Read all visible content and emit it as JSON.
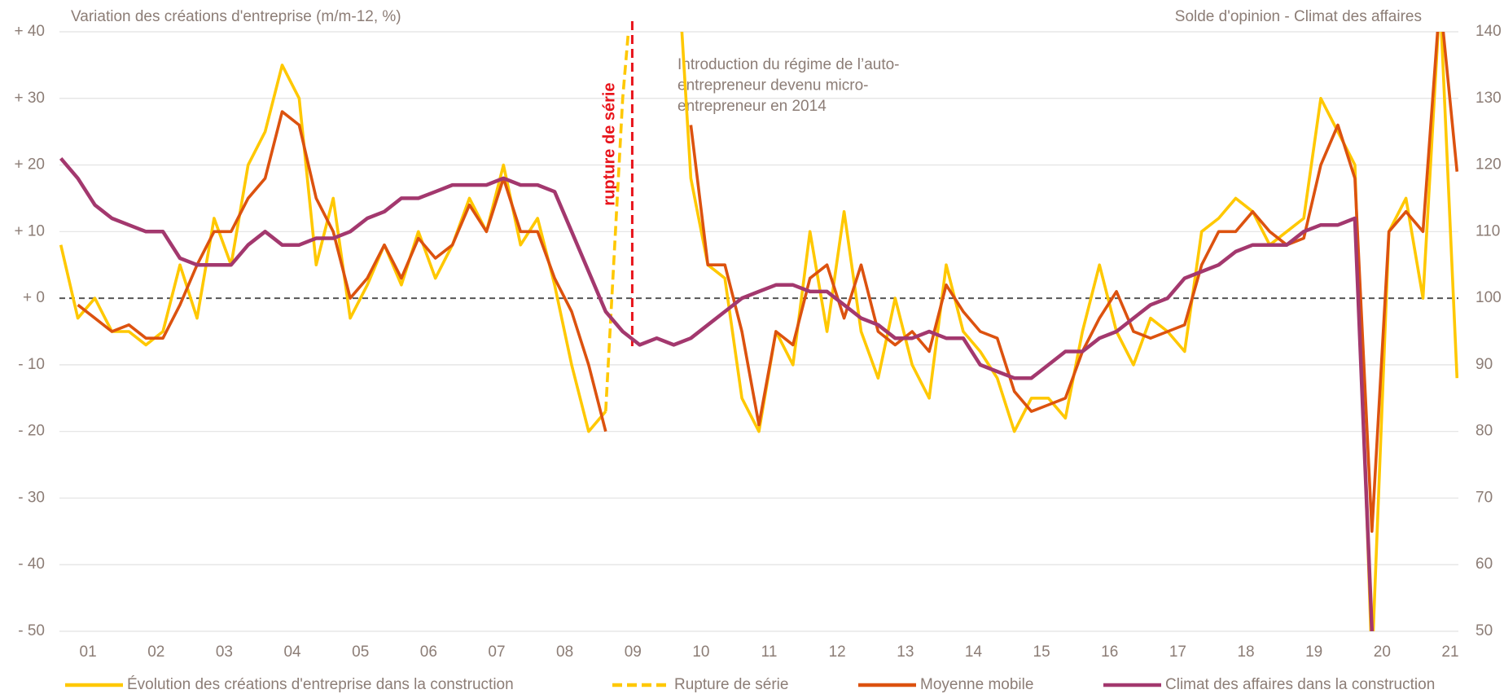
{
  "chart_data": {
    "type": "line",
    "y_title": "Variation des créations d'entreprise (m/m-12, %)",
    "y2_title": "Solde d'opinion - Climat des affaires",
    "annotation": [
      "Introduction du régime de l’auto-",
      "entrepreneur devenu micro-",
      "entrepreneur en 2014"
    ],
    "vline": {
      "x": 9.49,
      "label": "rupture de série",
      "color": "#e8141b"
    },
    "legend": "bottom",
    "grid": true,
    "xlim": [
      1.08,
      21.62
    ],
    "xticks": [
      {
        "value": 1.5,
        "label": "01"
      },
      {
        "value": 2.5,
        "label": "02"
      },
      {
        "value": 3.5,
        "label": "03"
      },
      {
        "value": 4.5,
        "label": "04"
      },
      {
        "value": 5.5,
        "label": "05"
      },
      {
        "value": 6.5,
        "label": "06"
      },
      {
        "value": 7.5,
        "label": "07"
      },
      {
        "value": 8.5,
        "label": "08"
      },
      {
        "value": 9.5,
        "label": "09"
      },
      {
        "value": 10.5,
        "label": "10"
      },
      {
        "value": 11.5,
        "label": "11"
      },
      {
        "value": 12.5,
        "label": "12"
      },
      {
        "value": 13.5,
        "label": "13"
      },
      {
        "value": 14.5,
        "label": "14"
      },
      {
        "value": 15.5,
        "label": "15"
      },
      {
        "value": 16.5,
        "label": "16"
      },
      {
        "value": 17.5,
        "label": "17"
      },
      {
        "value": 18.5,
        "label": "18"
      },
      {
        "value": 19.5,
        "label": "19"
      },
      {
        "value": 20.5,
        "label": "20"
      },
      {
        "value": 21.5,
        "label": "21"
      }
    ],
    "ylim": [
      -50,
      40
    ],
    "yticks": [
      {
        "value": 40,
        "label": "+ 40"
      },
      {
        "value": 30,
        "label": "+ 30"
      },
      {
        "value": 20,
        "label": "+ 20"
      },
      {
        "value": 10,
        "label": "+ 10"
      },
      {
        "value": 0,
        "label": "+ 0"
      },
      {
        "value": -10,
        "label": "- 10"
      },
      {
        "value": -20,
        "label": "- 20"
      },
      {
        "value": -30,
        "label": "- 30"
      },
      {
        "value": -40,
        "label": "- 40"
      },
      {
        "value": -50,
        "label": "- 50"
      }
    ],
    "y2lim": [
      50,
      140
    ],
    "y2ticks": [
      140,
      130,
      120,
      110,
      100,
      90,
      80,
      70,
      60,
      50
    ],
    "x": [
      1.1,
      1.35,
      1.6,
      1.85,
      2.1,
      2.35,
      2.6,
      2.85,
      3.1,
      3.35,
      3.6,
      3.85,
      4.1,
      4.35,
      4.6,
      4.85,
      5.1,
      5.35,
      5.6,
      5.85,
      6.1,
      6.35,
      6.6,
      6.85,
      7.1,
      7.35,
      7.6,
      7.85,
      8.1,
      8.35,
      8.6,
      8.85,
      9.1,
      9.35,
      9.6,
      9.85,
      10.1,
      10.35,
      10.6,
      10.85,
      11.1,
      11.35,
      11.6,
      11.85,
      12.1,
      12.35,
      12.6,
      12.85,
      13.1,
      13.35,
      13.6,
      13.85,
      14.1,
      14.35,
      14.6,
      14.85,
      15.1,
      15.35,
      15.6,
      15.85,
      16.1,
      16.35,
      16.6,
      16.85,
      17.1,
      17.35,
      17.6,
      17.85,
      18.1,
      18.35,
      18.6,
      18.85,
      19.1,
      19.35,
      19.6,
      19.85,
      20.1,
      20.35,
      20.6,
      20.85,
      21.1,
      21.35,
      21.6
    ],
    "series": [
      {
        "name": "Évolution des créations d'entreprise dans la construction",
        "color": "#ffc800",
        "style": "solid",
        "axis": "y",
        "values": [
          8,
          -3,
          0,
          -5,
          -5,
          -7,
          -5,
          5,
          -3,
          12,
          5,
          20,
          25,
          35,
          30,
          5,
          15,
          -3,
          2,
          8,
          2,
          10,
          3,
          8,
          15,
          10,
          20,
          8,
          12,
          2,
          -10,
          -20,
          -17,
          null,
          null,
          null,
          60,
          18,
          5,
          3,
          -15,
          -20,
          -5,
          -10,
          10,
          -5,
          13,
          -5,
          -12,
          0,
          -10,
          -15,
          5,
          -5,
          -8,
          -12,
          -20,
          -15,
          -15,
          -18,
          -5,
          5,
          -5,
          -10,
          -3,
          -5,
          -8,
          10,
          12,
          15,
          13,
          8,
          10,
          12,
          30,
          25,
          20,
          -55,
          10,
          15,
          0,
          45,
          -12
        ]
      },
      {
        "name": "Rupture de série",
        "color": "#ffc800",
        "style": "dashed",
        "axis": "y",
        "values": [
          null,
          null,
          null,
          null,
          null,
          null,
          null,
          null,
          null,
          null,
          null,
          null,
          null,
          null,
          null,
          null,
          null,
          null,
          null,
          null,
          null,
          null,
          null,
          null,
          null,
          null,
          null,
          null,
          null,
          null,
          null,
          null,
          -17,
          30,
          60,
          null,
          null,
          null,
          null,
          null,
          null,
          null,
          null,
          null,
          null,
          null,
          null,
          null,
          null,
          null,
          null,
          null,
          null,
          null,
          null,
          null,
          null,
          null,
          null,
          null,
          null,
          null,
          null,
          null,
          null,
          null,
          null,
          null,
          null,
          null,
          null,
          null,
          null,
          null,
          null,
          null,
          null,
          null,
          null,
          null,
          null,
          null,
          null
        ]
      },
      {
        "name": "Moyenne mobile",
        "color": "#dc520f",
        "style": "solid",
        "axis": "y",
        "values": [
          null,
          -1,
          -3,
          -5,
          -4,
          -6,
          -6,
          -1,
          5,
          10,
          10,
          15,
          18,
          28,
          26,
          15,
          10,
          0,
          3,
          8,
          3,
          9,
          6,
          8,
          14,
          10,
          18,
          10,
          10,
          3,
          -2,
          -10,
          -20,
          null,
          null,
          null,
          null,
          26,
          5,
          5,
          -5,
          -19,
          -5,
          -7,
          3,
          5,
          -3,
          5,
          -5,
          -7,
          -5,
          -8,
          2,
          -2,
          -5,
          -6,
          -14,
          -17,
          -16,
          -15,
          -8,
          -3,
          1,
          -5,
          -6,
          -5,
          -4,
          5,
          10,
          10,
          13,
          10,
          8,
          9,
          20,
          26,
          18,
          -35,
          10,
          13,
          10,
          45,
          19
        ]
      },
      {
        "name": "Climat des affaires dans la construction",
        "color": "#a3386e",
        "style": "solid",
        "axis": "y2",
        "values": [
          121,
          118,
          114,
          112,
          111,
          110,
          110,
          106,
          105,
          105,
          105,
          108,
          110,
          108,
          108,
          109,
          109,
          110,
          112,
          113,
          115,
          115,
          116,
          117,
          117,
          117,
          118,
          117,
          117,
          116,
          110,
          104,
          98,
          95,
          93,
          94,
          93,
          94,
          96,
          98,
          100,
          101,
          102,
          102,
          101,
          101,
          99,
          97,
          96,
          94,
          94,
          95,
          94,
          94,
          90,
          89,
          88,
          88,
          90,
          92,
          92,
          94,
          95,
          97,
          99,
          100,
          103,
          104,
          105,
          107,
          108,
          108,
          108,
          110,
          111,
          111,
          112,
          50,
          null,
          null,
          null,
          null,
          null
        ]
      }
    ]
  }
}
